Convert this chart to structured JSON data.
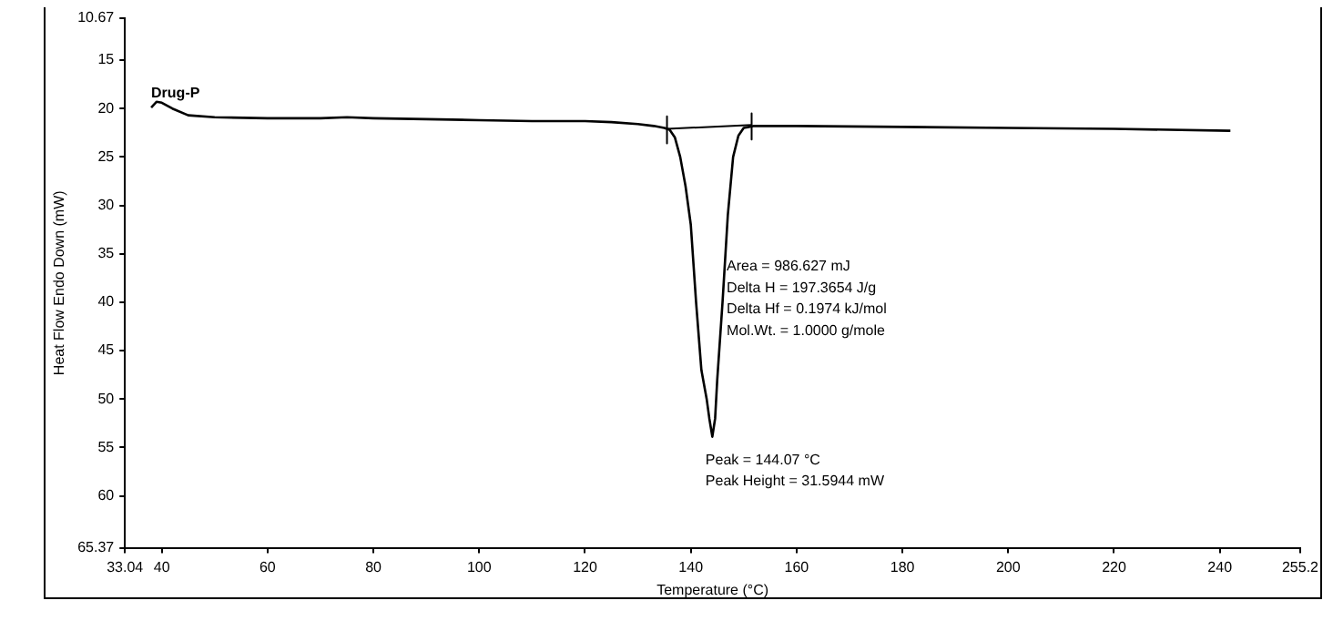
{
  "chart_data": {
    "type": "line",
    "xlabel": "Temperature (°C)",
    "ylabel": "Heat Flow Endo Down (mW)",
    "xlim": [
      33.04,
      255.2
    ],
    "xticks": [
      33.04,
      40,
      60,
      80,
      100,
      120,
      140,
      160,
      180,
      200,
      220,
      240,
      255.2
    ],
    "ylim": [
      65.37,
      10.67
    ],
    "yticks": [
      10.67,
      15,
      20,
      25,
      30,
      35,
      40,
      45,
      50,
      55,
      60,
      65.37
    ],
    "marker": "none",
    "line_style": "solid",
    "legend": false,
    "grid": false,
    "series": [
      {
        "name": "Drug-P",
        "color": "#000000",
        "x": [
          38,
          39,
          40,
          42,
          45,
          50,
          60,
          70,
          75,
          80,
          90,
          100,
          110,
          120,
          125,
          130,
          133,
          135,
          136,
          137,
          138,
          139,
          140,
          141,
          142,
          143,
          143.5,
          144.07,
          144.6,
          145,
          146,
          147,
          148,
          149,
          150,
          151,
          152,
          155,
          160,
          180,
          200,
          220,
          242
        ],
        "values": [
          19.9,
          19.3,
          19.4,
          20.0,
          20.7,
          20.9,
          21.0,
          21.0,
          20.9,
          21.0,
          21.1,
          21.2,
          21.3,
          21.3,
          21.4,
          21.6,
          21.8,
          22.0,
          22.2,
          23.0,
          25,
          28,
          32,
          40,
          47,
          50,
          52,
          53.9,
          52,
          48,
          40,
          31,
          25,
          22.8,
          22.0,
          21.9,
          21.8,
          21.8,
          21.8,
          21.9,
          22.0,
          22.1,
          22.3
        ]
      },
      {
        "color": "#000000",
        "x": [
          135.5,
          151.5
        ],
        "values": [
          22.1,
          21.7
        ]
      },
      {
        "color": "#000000",
        "x": [
          135.5,
          135.5
        ],
        "values": [
          20.8,
          23.6
        ]
      },
      {
        "color": "#000000",
        "x": [
          151.5,
          151.5
        ],
        "values": [
          20.5,
          23.2
        ]
      }
    ],
    "annotations": [
      "Area = 986.627 mJ",
      "Delta H = 197.3654 J/g",
      "Delta Hf = 0.1974 kJ/mol",
      "Mol.Wt. = 1.0000 g/mole",
      "Peak = 144.07 °C",
      "Peak Height = 31.5944 mW"
    ]
  }
}
